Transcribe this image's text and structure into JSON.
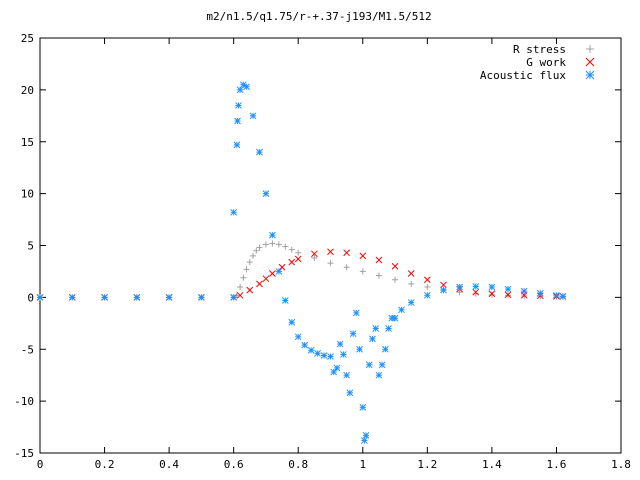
{
  "chart_data": {
    "type": "scatter",
    "title": "m2/n1.5/q1.75/r-+.37-j193/M1.5/512",
    "xlabel": "",
    "ylabel": "",
    "xlim": [
      0,
      1.8
    ],
    "ylim": [
      -15,
      25
    ],
    "x_ticks": [
      "0",
      "0.2",
      "0.4",
      "0.6",
      "0.8",
      "1",
      "1.2",
      "1.4",
      "1.6",
      "1.8"
    ],
    "y_ticks": [
      "-15",
      "-10",
      "-5",
      "0",
      "5",
      "10",
      "15",
      "20",
      "25"
    ],
    "grid": false,
    "legend_position": "top-right",
    "series": [
      {
        "name": "R stress",
        "marker": "plus",
        "color": "#a0a0a0",
        "points": [
          [
            0,
            0
          ],
          [
            0.1,
            0
          ],
          [
            0.2,
            0
          ],
          [
            0.3,
            0
          ],
          [
            0.4,
            0
          ],
          [
            0.5,
            0
          ],
          [
            0.6,
            0
          ],
          [
            0.61,
            0.2
          ],
          [
            0.62,
            1.0
          ],
          [
            0.63,
            1.9
          ],
          [
            0.64,
            2.7
          ],
          [
            0.65,
            3.4
          ],
          [
            0.66,
            4.0
          ],
          [
            0.67,
            4.5
          ],
          [
            0.68,
            4.8
          ],
          [
            0.7,
            5.1
          ],
          [
            0.72,
            5.2
          ],
          [
            0.74,
            5.1
          ],
          [
            0.76,
            4.9
          ],
          [
            0.78,
            4.6
          ],
          [
            0.8,
            4.3
          ],
          [
            0.85,
            3.8
          ],
          [
            0.9,
            3.3
          ],
          [
            0.95,
            2.9
          ],
          [
            1.0,
            2.5
          ],
          [
            1.05,
            2.1
          ],
          [
            1.1,
            1.7
          ],
          [
            1.15,
            1.3
          ],
          [
            1.2,
            1.0
          ],
          [
            1.25,
            0.75
          ],
          [
            1.3,
            0.5
          ],
          [
            1.35,
            0.35
          ],
          [
            1.4,
            0.25
          ],
          [
            1.45,
            0.2
          ],
          [
            1.5,
            0.15
          ],
          [
            1.55,
            0.1
          ],
          [
            1.6,
            0.05
          ],
          [
            1.62,
            0.05
          ]
        ]
      },
      {
        "name": "G work",
        "marker": "cross",
        "color": "#ff0000",
        "points": [
          [
            0,
            0
          ],
          [
            0.1,
            0
          ],
          [
            0.2,
            0
          ],
          [
            0.3,
            0
          ],
          [
            0.4,
            0
          ],
          [
            0.5,
            0
          ],
          [
            0.6,
            0
          ],
          [
            0.62,
            0.2
          ],
          [
            0.65,
            0.7
          ],
          [
            0.68,
            1.3
          ],
          [
            0.7,
            1.8
          ],
          [
            0.72,
            2.3
          ],
          [
            0.75,
            2.9
          ],
          [
            0.78,
            3.4
          ],
          [
            0.8,
            3.7
          ],
          [
            0.85,
            4.2
          ],
          [
            0.9,
            4.4
          ],
          [
            0.95,
            4.3
          ],
          [
            1.0,
            4.0
          ],
          [
            1.05,
            3.6
          ],
          [
            1.1,
            3.0
          ],
          [
            1.15,
            2.3
          ],
          [
            1.2,
            1.7
          ],
          [
            1.25,
            1.2
          ],
          [
            1.3,
            0.8
          ],
          [
            1.35,
            0.5
          ],
          [
            1.4,
            0.35
          ],
          [
            1.45,
            0.25
          ],
          [
            1.5,
            0.2
          ],
          [
            1.55,
            0.15
          ],
          [
            1.6,
            0.1
          ],
          [
            1.62,
            0.1
          ]
        ]
      },
      {
        "name": "Acoustic flux",
        "marker": "star",
        "color": "#1e90ff",
        "points": [
          [
            0,
            0
          ],
          [
            0.1,
            0
          ],
          [
            0.2,
            0
          ],
          [
            0.3,
            0
          ],
          [
            0.4,
            0
          ],
          [
            0.5,
            0
          ],
          [
            0.6,
            0
          ],
          [
            0.6,
            8.2
          ],
          [
            0.61,
            14.7
          ],
          [
            0.612,
            17.0
          ],
          [
            0.615,
            18.5
          ],
          [
            0.62,
            20.0
          ],
          [
            0.63,
            20.5
          ],
          [
            0.64,
            20.3
          ],
          [
            0.66,
            17.5
          ],
          [
            0.68,
            14.0
          ],
          [
            0.7,
            10.0
          ],
          [
            0.72,
            6.0
          ],
          [
            0.74,
            2.5
          ],
          [
            0.76,
            -0.3
          ],
          [
            0.78,
            -2.4
          ],
          [
            0.8,
            -3.8
          ],
          [
            0.82,
            -4.6
          ],
          [
            0.84,
            -5.1
          ],
          [
            0.86,
            -5.4
          ],
          [
            0.88,
            -5.6
          ],
          [
            0.9,
            -5.7
          ],
          [
            0.91,
            -7.2
          ],
          [
            0.92,
            -6.8
          ],
          [
            0.93,
            -4.5
          ],
          [
            0.94,
            -5.5
          ],
          [
            0.95,
            -7.5
          ],
          [
            0.96,
            -9.2
          ],
          [
            0.97,
            -3.5
          ],
          [
            0.98,
            -1.5
          ],
          [
            0.99,
            -5.0
          ],
          [
            1.0,
            -10.6
          ],
          [
            1.005,
            -13.8
          ],
          [
            1.01,
            -13.3
          ],
          [
            1.02,
            -6.5
          ],
          [
            1.03,
            -4.0
          ],
          [
            1.04,
            -3.0
          ],
          [
            1.05,
            -7.5
          ],
          [
            1.06,
            -6.5
          ],
          [
            1.07,
            -5.0
          ],
          [
            1.08,
            -3.0
          ],
          [
            1.09,
            -2.0
          ],
          [
            1.1,
            -2.0
          ],
          [
            1.12,
            -1.2
          ],
          [
            1.15,
            -0.5
          ],
          [
            1.2,
            0.2
          ],
          [
            1.25,
            0.7
          ],
          [
            1.3,
            1.0
          ],
          [
            1.35,
            1.05
          ],
          [
            1.4,
            1.0
          ],
          [
            1.45,
            0.8
          ],
          [
            1.5,
            0.6
          ],
          [
            1.55,
            0.4
          ],
          [
            1.6,
            0.2
          ],
          [
            1.62,
            0.1
          ]
        ]
      }
    ]
  }
}
